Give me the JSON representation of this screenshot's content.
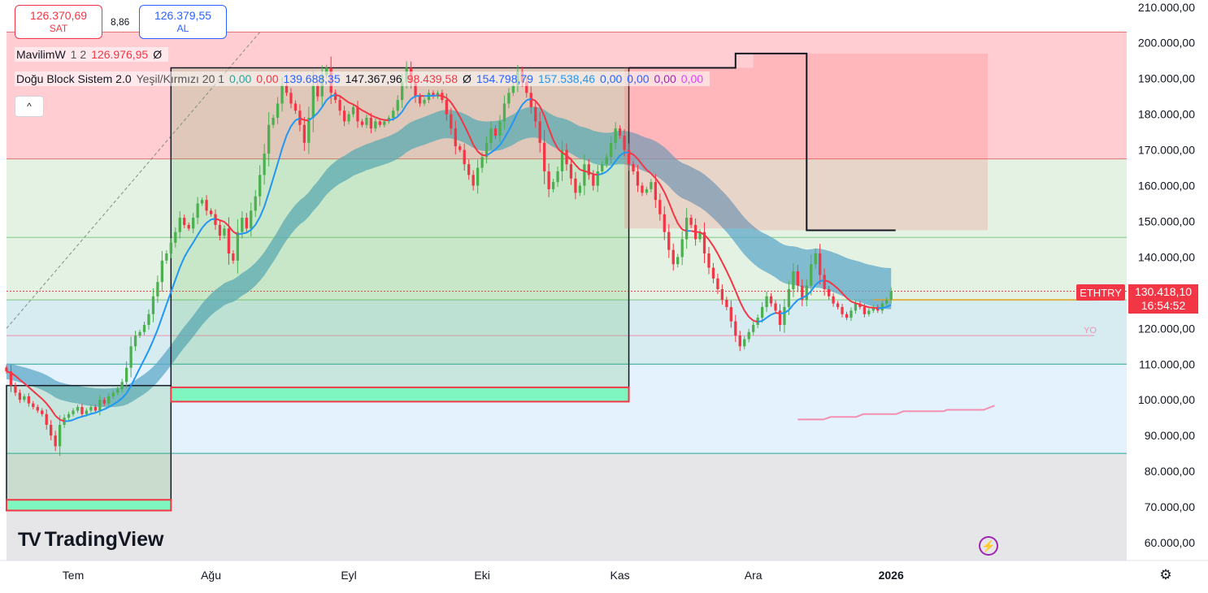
{
  "header": {
    "sell_price": "126.370,69",
    "sell_label": "SAT",
    "spread": "8,86",
    "buy_price": "126.379,55",
    "buy_label": "AL"
  },
  "legend": {
    "row1": {
      "name": "MavilimW",
      "params": "1 2",
      "value": "126.976,95",
      "symbol": "Ø"
    },
    "row2": {
      "name": "Doğu Block Sistem 2.0",
      "params": "Yeşil/Kırmızı 20 1",
      "v1": "0,00",
      "v2": "0,00",
      "v3": "139.688,35",
      "v4": "147.367,96",
      "v5": "98.439,58",
      "symbol": "Ø",
      "v6": "154.798,79",
      "v7": "157.538,46",
      "v8": "0,00",
      "v9": "0,00",
      "v10": "0,00",
      "v11": "0,00"
    },
    "collapse_glyph": "^"
  },
  "price_tag": {
    "symbol": "ETHTRY",
    "price": "130.418,10",
    "countdown": "16:54:52"
  },
  "yo_label": "YO",
  "branding": "TradingView",
  "colors": {
    "up": "#26a69a",
    "up_green": "#4caf50",
    "down": "#f23645",
    "mavilim_blue": "#2196f3",
    "band": "#5fa8c8",
    "sell": "#f23645",
    "buy": "#2962ff"
  },
  "chart_data": {
    "type": "candlestick",
    "symbol": "ETHTRY",
    "yaxis_labels": [
      "210.000,00",
      "200.000,00",
      "190.000,00",
      "180.000,00",
      "170.000,00",
      "160.000,00",
      "150.000,00",
      "140.000,00",
      "130.000,00",
      "120.000,00",
      "110.000,00",
      "100.000,00",
      "90.000,00",
      "80.000,00",
      "70.000,00",
      "60.000,00"
    ],
    "yaxis_values": [
      210000,
      200000,
      190000,
      180000,
      170000,
      160000,
      150000,
      140000,
      130000,
      120000,
      110000,
      100000,
      90000,
      80000,
      70000,
      60000
    ],
    "ylim": [
      55000,
      212000
    ],
    "xaxis_labels": [
      {
        "label": "Tem",
        "day": 15
      },
      {
        "label": "Ağu",
        "day": 46
      },
      {
        "label": "Eyl",
        "day": 77
      },
      {
        "label": "Eki",
        "day": 107
      },
      {
        "label": "Kas",
        "day": 138
      },
      {
        "label": "Ara",
        "day": 168
      },
      {
        "label": "2026",
        "day": 199
      }
    ],
    "xlim": [
      0,
      252
    ],
    "last_day": 200,
    "last_price": 130418.1,
    "closes": [
      108000,
      104000,
      102000,
      100000,
      101000,
      99000,
      98000,
      97000,
      96000,
      93000,
      90000,
      87000,
      93000,
      95000,
      96000,
      97000,
      98000,
      96000,
      97000,
      98000,
      97000,
      100000,
      99000,
      101000,
      102000,
      103000,
      105000,
      109000,
      115000,
      118000,
      119000,
      121000,
      124000,
      129000,
      133000,
      139000,
      141000,
      144000,
      147000,
      151000,
      149000,
      148000,
      151000,
      155000,
      156000,
      153000,
      152000,
      149000,
      146000,
      148000,
      141000,
      139000,
      147000,
      151000,
      148000,
      153000,
      157000,
      163000,
      169000,
      177000,
      179000,
      183000,
      188000,
      186000,
      183000,
      181000,
      177000,
      172000,
      179000,
      188000,
      185000,
      191000,
      193000,
      186000,
      184000,
      181000,
      178000,
      180000,
      182000,
      178000,
      177000,
      179000,
      176000,
      178000,
      177000,
      178000,
      179000,
      181000,
      184000,
      189000,
      193000,
      189000,
      185000,
      183000,
      184000,
      186000,
      185000,
      186000,
      184000,
      180000,
      176000,
      171000,
      170000,
      166000,
      163000,
      160000,
      165000,
      168000,
      172000,
      176000,
      174000,
      178000,
      183000,
      186000,
      188000,
      192000,
      189000,
      186000,
      182000,
      178000,
      172000,
      164000,
      159000,
      161000,
      164000,
      170000,
      166000,
      162000,
      158000,
      160000,
      166000,
      163000,
      160000,
      164000,
      166000,
      168000,
      172000,
      176000,
      174000,
      170000,
      166000,
      164000,
      160000,
      158000,
      159000,
      161000,
      156000,
      152000,
      147000,
      142000,
      138000,
      140000,
      145000,
      151000,
      149000,
      145000,
      147000,
      141000,
      137000,
      134000,
      131000,
      128000,
      126000,
      122000,
      118000,
      115000,
      117000,
      119000,
      121000,
      123000,
      126000,
      129000,
      127000,
      125000,
      121000,
      126000,
      131000,
      136000,
      132000,
      128000,
      132000,
      138000,
      141000,
      135000,
      131000,
      129000,
      127000,
      126000,
      124000,
      123000,
      125000,
      127000,
      126000,
      124000,
      125000,
      126000,
      125000,
      127000,
      128000,
      130418
    ],
    "series": [
      {
        "name": "MavilimW",
        "color": "#2196f3/#f23645",
        "values_ref": "smoothed closes"
      },
      {
        "name": "Doğu Block Sistem 2.0",
        "type": "boxes"
      }
    ],
    "zones": [
      {
        "from": 167500,
        "to": 203000,
        "color": "#ffcdd2"
      },
      {
        "from": 128000,
        "to": 167500,
        "color": "#e3f2e3"
      },
      {
        "from": 110000,
        "to": 128000,
        "color": "#d6ecf0"
      },
      {
        "from": 85000,
        "to": 110000,
        "color": "#e3f2fd"
      },
      {
        "from": 55000,
        "to": 85000,
        "color": "#e6e6e9"
      }
    ],
    "horizontal_lines": [
      203000,
      167500,
      145500,
      128000,
      110000,
      85000
    ],
    "long_boxes": [
      {
        "d0": 0,
        "d1": 37,
        "entry": 72000,
        "stop": 69000,
        "target": 104000
      },
      {
        "d0": 37,
        "d1": 140,
        "entry": 103500,
        "stop": 99500,
        "target": 193000
      }
    ],
    "short_boxes": [
      {
        "d0": 139,
        "d1": 168,
        "entry": 193000,
        "target": 148000
      },
      {
        "d0": 168,
        "d1": 260,
        "entry": 197000,
        "target": 147500
      }
    ],
    "grid": false,
    "legend_position": "top-left"
  }
}
